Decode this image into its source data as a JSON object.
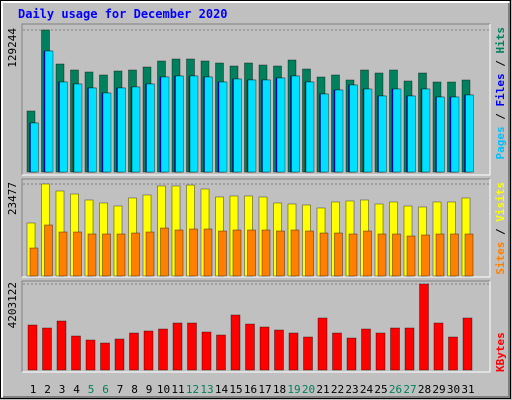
{
  "chart_data": [
    {
      "type": "bar",
      "title": "Daily usage for December 2020",
      "ylim": [
        0,
        129244
      ],
      "yticks": [
        129244
      ],
      "legend_separator": " / ",
      "series": [
        {
          "name": "Hits",
          "color": "#00805c",
          "values": [
            55520,
            129244,
            98300,
            92840,
            91020,
            88290,
            91930,
            92840,
            95570,
            101030,
            102850,
            102850,
            101030,
            99210,
            96480,
            99210,
            97390,
            96480,
            101940,
            93750,
            86470,
            88290,
            83740,
            92840,
            90110,
            92840,
            82830,
            90110,
            81920,
            81920,
            83740
          ]
        },
        {
          "name": "Files",
          "color": "#0000ff",
          "values": [
            44600,
            110130,
            81920,
            80100,
            76460,
            71900,
            76460,
            77370,
            80100,
            86470,
            87380,
            87380,
            86470,
            81920,
            84650,
            83740,
            83740,
            85560,
            87380,
            81920,
            70990,
            74630,
            79190,
            75540,
            69170,
            75540,
            69170,
            75540,
            68260,
            68260,
            70080
          ]
        },
        {
          "name": "Pages",
          "color": "#00e0ff",
          "values": [
            44600,
            110130,
            81920,
            80100,
            76460,
            71900,
            76460,
            77370,
            80100,
            86470,
            87380,
            87380,
            86470,
            81920,
            84650,
            83740,
            83740,
            85560,
            87380,
            81920,
            70990,
            74630,
            79190,
            75540,
            69170,
            75540,
            69170,
            75540,
            68260,
            68260,
            70080
          ]
        }
      ]
    },
    {
      "type": "bar",
      "ylim": [
        0,
        23477
      ],
      "yticks": [
        23477
      ],
      "legend_separator": " / ",
      "series": [
        {
          "name": "Visits",
          "color": "#ffff00",
          "values": [
            13525,
            23477,
            21690,
            20925,
            19394,
            18629,
            17863,
            19904,
            20670,
            22967,
            22967,
            23200,
            22201,
            20160,
            20415,
            20415,
            20160,
            18629,
            18373,
            18118,
            17353,
            18884,
            19139,
            19394,
            18373,
            18884,
            17863,
            17608,
            18884,
            18884,
            19904
          ]
        },
        {
          "name": "Sites",
          "color": "#ff8000",
          "values": [
            7145,
            13015,
            11228,
            11228,
            10718,
            10718,
            10718,
            10973,
            11228,
            12249,
            11739,
            11994,
            11994,
            11483,
            11739,
            11739,
            11739,
            11483,
            11739,
            11483,
            10973,
            10973,
            10718,
            11483,
            10718,
            10718,
            10207,
            10463,
            10718,
            10718,
            10718
          ]
        }
      ]
    },
    {
      "type": "bar",
      "ylim": [
        0,
        4203122
      ],
      "yticks": [
        4203122
      ],
      "categories": [
        "1",
        "2",
        "3",
        "4",
        "5",
        "6",
        "7",
        "8",
        "9",
        "10",
        "11",
        "12",
        "13",
        "14",
        "15",
        "16",
        "17",
        "18",
        "19",
        "20",
        "21",
        "22",
        "23",
        "24",
        "25",
        "26",
        "27",
        "28",
        "29",
        "30",
        "31"
      ],
      "category_colors": [
        "#000000",
        "#000000",
        "#000000",
        "#000000",
        "#00805c",
        "#00805c",
        "#000000",
        "#000000",
        "#000000",
        "#000000",
        "#000000",
        "#00805c",
        "#00805c",
        "#000000",
        "#000000",
        "#000000",
        "#000000",
        "#000000",
        "#00805c",
        "#00805c",
        "#000000",
        "#000000",
        "#000000",
        "#000000",
        "#000000",
        "#00805c",
        "#00805c",
        "#000000",
        "#000000",
        "#000000",
        "#000000"
      ],
      "series": [
        {
          "name": "KBytes",
          "color": "#ff0000",
          "values": [
            2199300,
            2052700,
            2394800,
            1661700,
            1466200,
            1319600,
            1515100,
            1808300,
            1906000,
            2003800,
            2297000,
            2297000,
            1857200,
            1710600,
            2688000,
            2248200,
            2101500,
            1954900,
            1808300,
            1612800,
            2541400,
            1808300,
            1563900,
            2003800,
            1808300,
            2052700,
            2052700,
            4203122,
            2297000,
            1612800,
            2541400
          ]
        }
      ]
    }
  ]
}
